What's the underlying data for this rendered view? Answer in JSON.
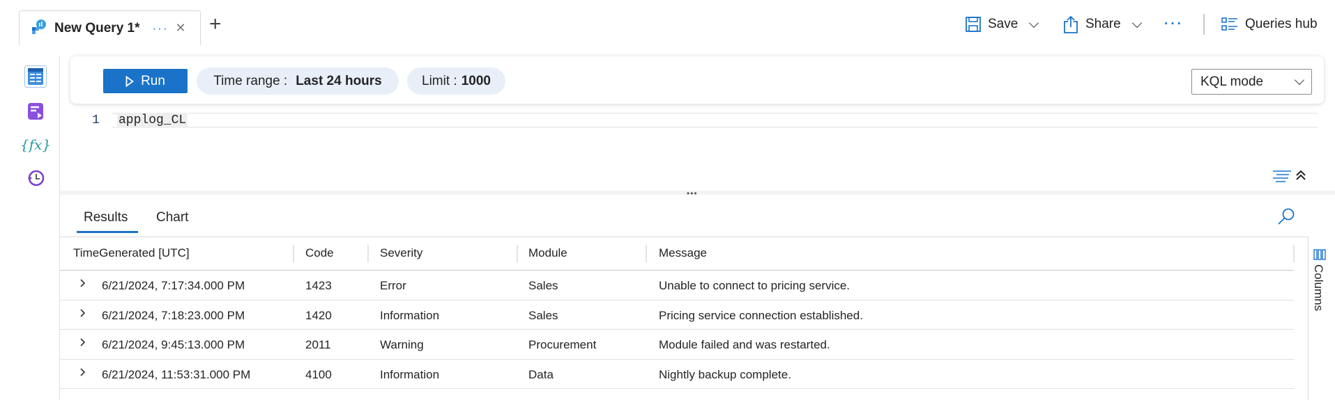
{
  "tab": {
    "title": "New Query 1*",
    "more": "···",
    "close": "✕",
    "icon": "log-analytics-icon"
  },
  "new_tab": "+",
  "commands": {
    "save": "Save",
    "share": "Share",
    "more": "···",
    "queries_hub": "Queries hub"
  },
  "rail": {
    "icons": [
      "tables-icon",
      "queries-icon",
      "functions-icon",
      "history-icon"
    ]
  },
  "toolbar": {
    "run": "Run",
    "time_range_label": "Time range :",
    "time_range_value": "Last 24 hours",
    "limit_label": "Limit :",
    "limit_value": "1000",
    "mode": "KQL mode"
  },
  "editor": {
    "line_number": "1",
    "code": "applog_CL"
  },
  "results": {
    "tabs": [
      "Results",
      "Chart"
    ],
    "active_tab": "Results",
    "columns": [
      "TimeGenerated [UTC]",
      "Code",
      "Severity",
      "Module",
      "Message"
    ],
    "rows": [
      [
        "6/21/2024, 7:17:34.000 PM",
        "1423",
        "Error",
        "Sales",
        "Unable to connect to pricing service."
      ],
      [
        "6/21/2024, 7:18:23.000 PM",
        "1420",
        "Information",
        "Sales",
        "Pricing service connection established."
      ],
      [
        "6/21/2024, 9:45:13.000 PM",
        "2011",
        "Warning",
        "Procurement",
        "Module failed and was restarted."
      ],
      [
        "6/21/2024, 11:53:31.000 PM",
        "4100",
        "Information",
        "Data",
        "Nightly backup complete."
      ]
    ],
    "columns_panel": "Columns"
  },
  "colors": {
    "accent": "#1a73c9",
    "pill": "#e8eff8"
  }
}
